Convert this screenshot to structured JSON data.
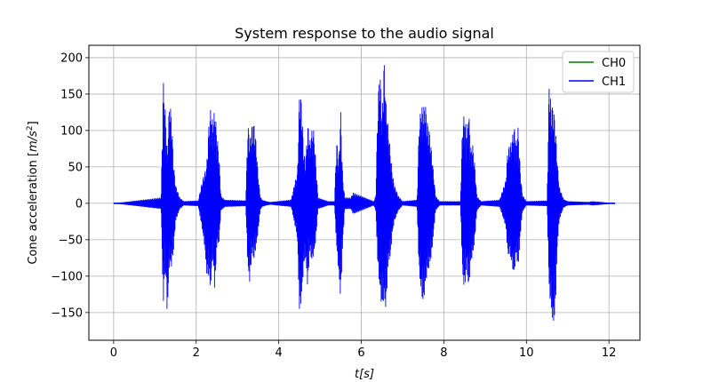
{
  "chart_data": {
    "type": "line",
    "title": "System response to the audio signal",
    "xlabel_var": "t",
    "xlabel_unit": "[s]",
    "ylabel_prefix": "Cone acceleration [",
    "ylabel_unit": "m/s",
    "ylabel_exp": "2",
    "ylabel_suffix": "]",
    "xlim": [
      -0.6,
      12.75
    ],
    "ylim": [
      -188,
      217
    ],
    "x_ticks": [
      0,
      2,
      4,
      6,
      8,
      10,
      12
    ],
    "y_ticks": [
      -150,
      -100,
      -50,
      0,
      50,
      100,
      150,
      200
    ],
    "grid": true,
    "legend_position": "top-right",
    "series": [
      {
        "name": "CH0",
        "color": "#008000",
        "x": [
          0,
          12.15
        ],
        "y": [
          0,
          0
        ]
      },
      {
        "name": "CH1",
        "color": "#0000ff",
        "x": [
          0,
          1.15,
          1.2,
          1.25,
          1.3,
          1.35,
          1.4,
          1.45,
          1.5,
          1.6,
          1.7,
          2.05,
          2.15,
          2.2,
          2.25,
          2.3,
          2.35,
          2.4,
          2.45,
          2.5,
          2.55,
          2.6,
          2.7,
          3.2,
          3.25,
          3.3,
          3.35,
          3.4,
          3.45,
          3.5,
          3.55,
          3.6,
          3.7,
          3.8,
          4.3,
          4.4,
          4.45,
          4.5,
          4.55,
          4.6,
          4.65,
          4.7,
          4.75,
          4.8,
          4.85,
          4.9,
          4.95,
          5.2,
          5.35,
          5.4,
          5.45,
          5.5,
          5.55,
          5.6,
          5.75,
          5.8,
          6.3,
          6.35,
          6.4,
          6.45,
          6.5,
          6.55,
          6.6,
          6.65,
          6.7,
          6.75,
          6.8,
          6.9,
          7.0,
          7.35,
          7.4,
          7.45,
          7.5,
          7.55,
          7.6,
          7.65,
          7.7,
          7.75,
          7.8,
          7.9,
          8.4,
          8.45,
          8.5,
          8.55,
          8.6,
          8.65,
          8.7,
          8.75,
          8.8,
          8.9,
          9.35,
          9.5,
          9.55,
          9.6,
          9.65,
          9.7,
          9.75,
          9.8,
          9.85,
          9.9,
          10.0,
          10.5,
          10.55,
          10.6,
          10.65,
          10.7,
          10.75,
          10.8,
          10.9,
          11.0,
          11.5,
          11.6,
          11.8,
          12.15
        ],
        "ymax": [
          0,
          8,
          170,
          128,
          70,
          142,
          122,
          55,
          25,
          8,
          3,
          4,
          32,
          42,
          50,
          104,
          130,
          112,
          130,
          96,
          68,
          10,
          5,
          4,
          110,
          88,
          108,
          110,
          85,
          40,
          10,
          5,
          3,
          2,
          5,
          32,
          40,
          150,
          143,
          75,
          55,
          112,
          85,
          100,
          100,
          55,
          8,
          3,
          3,
          90,
          55,
          128,
          35,
          8,
          8,
          15,
          3,
          10,
          142,
          190,
          118,
          200,
          137,
          105,
          73,
          42,
          25,
          10,
          3,
          5,
          110,
          133,
          132,
          138,
          113,
          100,
          73,
          42,
          10,
          3,
          3,
          108,
          125,
          95,
          130,
          76,
          80,
          52,
          10,
          3,
          5,
          32,
          77,
          80,
          88,
          107,
          85,
          105,
          47,
          12,
          3,
          4,
          170,
          132,
          135,
          108,
          57,
          22,
          6,
          3,
          2,
          3,
          2,
          0
        ],
        "ymin": [
          0,
          -8,
          -143,
          -85,
          -157,
          -82,
          -87,
          -67,
          -25,
          -8,
          -3,
          -4,
          -38,
          -58,
          -97,
          -100,
          -118,
          -70,
          -122,
          -58,
          -55,
          -10,
          -5,
          -4,
          -90,
          -110,
          -68,
          -78,
          -60,
          -40,
          -10,
          -5,
          -3,
          -2,
          -5,
          -33,
          -48,
          -150,
          -132,
          -90,
          -72,
          -118,
          -65,
          -80,
          -70,
          -50,
          -8,
          -3,
          -3,
          -60,
          -95,
          -132,
          -55,
          -8,
          -8,
          -15,
          -3,
          -10,
          -88,
          -118,
          -145,
          -130,
          -148,
          -80,
          -76,
          -42,
          -25,
          -10,
          -3,
          -5,
          -97,
          -122,
          -140,
          -113,
          -96,
          -86,
          -73,
          -42,
          -10,
          -3,
          -3,
          -95,
          -122,
          -85,
          -120,
          -81,
          -72,
          -50,
          -10,
          -3,
          -5,
          -32,
          -72,
          -70,
          -85,
          -100,
          -70,
          -90,
          -47,
          -12,
          -3,
          -4,
          -118,
          -148,
          -168,
          -150,
          -57,
          -22,
          -6,
          -3,
          -2,
          -3,
          -2,
          0
        ]
      }
    ]
  }
}
